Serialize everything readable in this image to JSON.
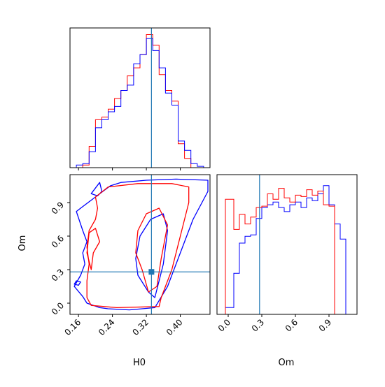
{
  "chart_data": {
    "type": "corner",
    "parameters": [
      "H0",
      "Om"
    ],
    "truth": {
      "H0": 0.332,
      "Om": 0.28
    },
    "truth_color": "#1f77b4",
    "series_colors": {
      "red": "#ff0000",
      "blue": "#0000ff"
    },
    "h0_axis": {
      "label": "H0",
      "range": [
        0.14,
        0.47
      ],
      "ticks": [
        0.16,
        0.24,
        0.32,
        0.4
      ],
      "tick_labels": [
        "0.16",
        "0.24",
        "0.32",
        "0.40"
      ]
    },
    "om_axis": {
      "label": "Om",
      "range": [
        -0.1,
        1.15
      ],
      "ticks": [
        0.0,
        0.3,
        0.6,
        0.9
      ],
      "tick_labels": [
        "0.0",
        "0.3",
        "0.6",
        "0.9"
      ]
    },
    "h0_hist": {
      "bin_edges": [
        0.14,
        0.155,
        0.17,
        0.185,
        0.2,
        0.215,
        0.23,
        0.245,
        0.26,
        0.275,
        0.29,
        0.305,
        0.32,
        0.335,
        0.35,
        0.365,
        0.38,
        0.395,
        0.41,
        0.425,
        0.44,
        0.455,
        0.47
      ],
      "blue": [
        0.0,
        0.02,
        0.03,
        0.12,
        0.3,
        0.36,
        0.42,
        0.46,
        0.58,
        0.62,
        0.78,
        0.85,
        0.97,
        0.88,
        0.75,
        0.56,
        0.47,
        0.2,
        0.13,
        0.03,
        0.01,
        0.0
      ],
      "red": [
        0.0,
        0.0,
        0.02,
        0.16,
        0.36,
        0.38,
        0.44,
        0.52,
        0.58,
        0.69,
        0.75,
        0.85,
        1.0,
        0.92,
        0.7,
        0.58,
        0.5,
        0.18,
        0.07,
        0.0,
        0.0,
        0.0
      ]
    },
    "om_hist": {
      "bin_edges": [
        -0.1,
        -0.025,
        0.05,
        0.1,
        0.15,
        0.2,
        0.25,
        0.3,
        0.35,
        0.4,
        0.45,
        0.5,
        0.55,
        0.6,
        0.65,
        0.7,
        0.75,
        0.8,
        0.85,
        0.9,
        0.95,
        1.0,
        1.05,
        1.15
      ],
      "blue": [
        0.0,
        0.05,
        0.3,
        0.52,
        0.57,
        0.58,
        0.7,
        0.78,
        0.8,
        0.82,
        0.78,
        0.75,
        0.8,
        0.82,
        0.78,
        0.85,
        0.83,
        0.88,
        0.94,
        0.8,
        0.66,
        0.55,
        0.0
      ],
      "red": [
        0.0,
        0.84,
        0.62,
        0.73,
        0.66,
        0.71,
        0.78,
        0.79,
        0.88,
        0.84,
        0.92,
        0.85,
        0.82,
        0.87,
        0.86,
        0.91,
        0.87,
        0.9,
        0.8,
        0.79,
        0.0,
        0.0,
        0.0
      ]
    },
    "contours_2d": {
      "blue": [
        [
          [
            0.165,
            0.85
          ],
          [
            0.2,
            0.95
          ],
          [
            0.235,
            1.05
          ],
          [
            0.26,
            1.08
          ],
          [
            0.32,
            1.1
          ],
          [
            0.39,
            1.11
          ],
          [
            0.465,
            1.1
          ],
          [
            0.465,
            1.0
          ],
          [
            0.43,
            0.75
          ],
          [
            0.4,
            0.45
          ],
          [
            0.37,
            0.15
          ],
          [
            0.34,
            -0.04
          ],
          [
            0.28,
            -0.06
          ],
          [
            0.23,
            -0.05
          ],
          [
            0.21,
            -0.04
          ],
          [
            0.18,
            0.0
          ],
          [
            0.17,
            0.06
          ],
          [
            0.15,
            0.15
          ],
          [
            0.165,
            0.25
          ],
          [
            0.175,
            0.35
          ],
          [
            0.17,
            0.45
          ],
          [
            0.18,
            0.55
          ],
          [
            0.17,
            0.65
          ],
          [
            0.155,
            0.82
          ]
        ],
        [
          [
            0.305,
            0.6
          ],
          [
            0.33,
            0.75
          ],
          [
            0.36,
            0.8
          ],
          [
            0.37,
            0.65
          ],
          [
            0.36,
            0.35
          ],
          [
            0.35,
            0.2
          ],
          [
            0.34,
            0.05
          ],
          [
            0.325,
            0.1
          ],
          [
            0.3,
            0.25
          ],
          [
            0.295,
            0.4
          ]
        ],
        [
          [
            0.155,
            0.2
          ],
          [
            0.165,
            0.19
          ],
          [
            0.16,
            0.16
          ],
          [
            0.15,
            0.17
          ]
        ],
        [
          [
            0.19,
            0.98
          ],
          [
            0.21,
            1.08
          ],
          [
            0.215,
            1.0
          ],
          [
            0.205,
            0.96
          ]
        ]
      ],
      "red": [
        [
          [
            0.2,
            0.95
          ],
          [
            0.23,
            1.04
          ],
          [
            0.3,
            1.07
          ],
          [
            0.38,
            1.07
          ],
          [
            0.42,
            1.04
          ],
          [
            0.42,
            0.9
          ],
          [
            0.4,
            0.6
          ],
          [
            0.38,
            0.3
          ],
          [
            0.355,
            0.05
          ],
          [
            0.35,
            -0.03
          ],
          [
            0.25,
            -0.04
          ],
          [
            0.19,
            -0.02
          ],
          [
            0.18,
            0.05
          ],
          [
            0.18,
            0.2
          ],
          [
            0.185,
            0.35
          ],
          [
            0.18,
            0.5
          ],
          [
            0.185,
            0.65
          ],
          [
            0.2,
            0.75
          ],
          [
            0.205,
            0.85
          ]
        ],
        [
          [
            0.3,
            0.65
          ],
          [
            0.32,
            0.8
          ],
          [
            0.35,
            0.85
          ],
          [
            0.37,
            0.7
          ],
          [
            0.355,
            0.4
          ],
          [
            0.345,
            0.15
          ],
          [
            0.325,
            0.1
          ],
          [
            0.31,
            0.3
          ],
          [
            0.295,
            0.45
          ]
        ],
        [
          [
            0.185,
            0.63
          ],
          [
            0.2,
            0.67
          ],
          [
            0.21,
            0.55
          ],
          [
            0.195,
            0.45
          ],
          [
            0.19,
            0.3
          ],
          [
            0.18,
            0.45
          ]
        ]
      ]
    }
  }
}
